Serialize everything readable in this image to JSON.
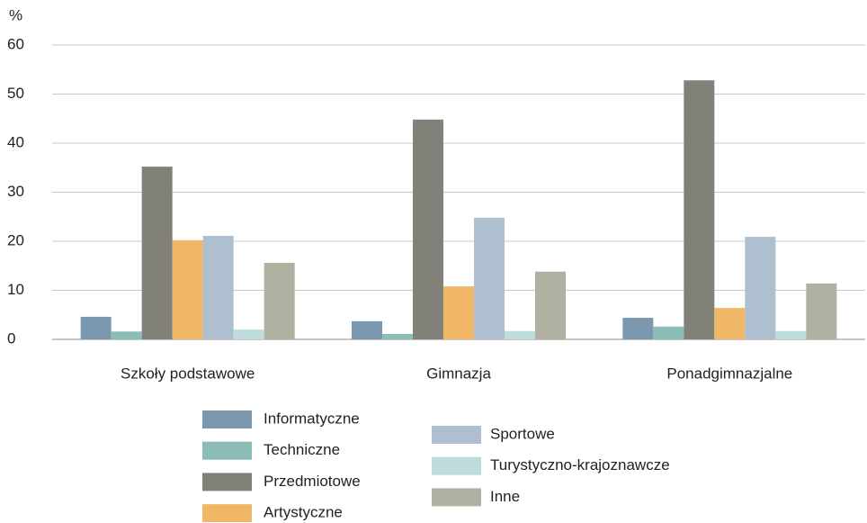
{
  "chart_data": {
    "type": "bar",
    "y_label": "%",
    "categories": [
      "Szkoły podstawowe",
      "Gimnazja",
      "Ponadgimnazjalne"
    ],
    "series": [
      {
        "name": "Informatyczne",
        "color": "#7b98ae",
        "values": [
          4.6,
          3.7,
          4.4
        ]
      },
      {
        "name": "Techniczne",
        "color": "#8cbcb8",
        "values": [
          1.6,
          1.1,
          2.6
        ]
      },
      {
        "name": "Przedmiotowe",
        "color": "#818179",
        "values": [
          35.2,
          44.8,
          52.8
        ]
      },
      {
        "name": "Artystyczne",
        "color": "#f0b866",
        "values": [
          20.2,
          10.8,
          6.4
        ]
      },
      {
        "name": "Sportowe",
        "color": "#aebfd0",
        "values": [
          21.1,
          24.8,
          20.9
        ]
      },
      {
        "name": "Turystyczno-krajoznawcze",
        "color": "#bedcdc",
        "values": [
          2.0,
          1.7,
          1.7
        ]
      },
      {
        "name": "Inne",
        "color": "#b1b1a1",
        "values": [
          15.6,
          13.8,
          11.4
        ]
      }
    ],
    "ylim": [
      0,
      60
    ],
    "yticks": [
      0,
      10,
      20,
      30,
      40,
      50,
      60
    ],
    "grid": true
  }
}
